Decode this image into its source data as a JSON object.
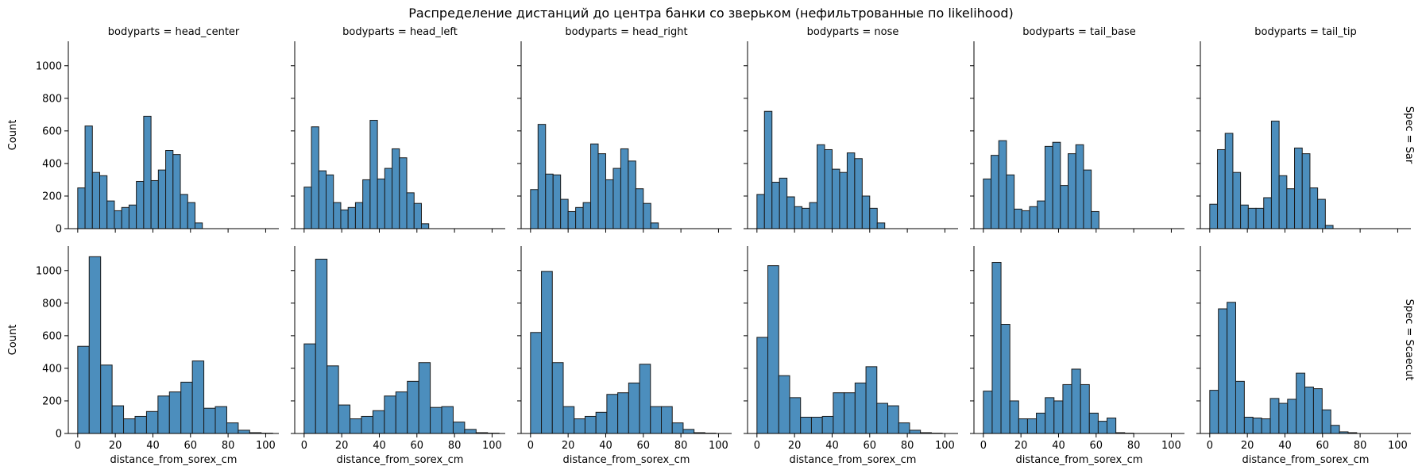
{
  "chart_data": {
    "type": "bar",
    "title": "Распределение дистанций до центра банки со зверьком (нефильтрованные по likelihood)",
    "col_var": "bodyparts",
    "row_var": "Spec",
    "columns": [
      "head_center",
      "head_left",
      "head_right",
      "nose",
      "tail_base",
      "tail_tip"
    ],
    "col_titles": [
      "bodyparts = head_center",
      "bodyparts = head_left",
      "bodyparts = head_right",
      "bodyparts = nose",
      "bodyparts = tail_base",
      "bodyparts = tail_tip"
    ],
    "row_titles": [
      "Spec = Sar",
      "Spec = Scaecut"
    ],
    "xlabel": "distance_from_sorex_cm",
    "ylabel": "Count",
    "xlim": [
      -5,
      107
    ],
    "ylim": [
      0,
      1150
    ],
    "x_ticks": [
      0,
      20,
      40,
      60,
      80,
      100
    ],
    "y_ticks": [
      0,
      200,
      400,
      600,
      800,
      1000
    ],
    "color": "#4c8ebd",
    "panels": [
      {
        "row": "Sar",
        "col": "head_center",
        "bin_start": 0,
        "bin_width": 3.9,
        "values": [
          250,
          630,
          345,
          325,
          170,
          110,
          130,
          145,
          290,
          690,
          295,
          360,
          480,
          455,
          210,
          160,
          35
        ]
      },
      {
        "row": "Sar",
        "col": "head_left",
        "bin_start": 0,
        "bin_width": 3.9,
        "values": [
          255,
          625,
          355,
          330,
          160,
          115,
          130,
          160,
          300,
          665,
          305,
          370,
          490,
          435,
          220,
          155,
          30
        ]
      },
      {
        "row": "Sar",
        "col": "head_right",
        "bin_start": 0,
        "bin_width": 4.0,
        "values": [
          240,
          640,
          335,
          330,
          180,
          105,
          130,
          160,
          520,
          460,
          300,
          370,
          490,
          415,
          245,
          155,
          35
        ]
      },
      {
        "row": "Sar",
        "col": "nose",
        "bin_start": 0,
        "bin_width": 4.0,
        "values": [
          210,
          720,
          285,
          310,
          195,
          135,
          125,
          160,
          515,
          485,
          365,
          345,
          465,
          430,
          200,
          125,
          35
        ]
      },
      {
        "row": "Sar",
        "col": "tail_base",
        "bin_start": 0,
        "bin_width": 4.1,
        "values": [
          305,
          450,
          540,
          330,
          120,
          110,
          135,
          170,
          505,
          530,
          265,
          460,
          515,
          360,
          105
        ]
      },
      {
        "row": "Sar",
        "col": "tail_tip",
        "bin_start": 0,
        "bin_width": 4.1,
        "values": [
          150,
          485,
          585,
          345,
          145,
          125,
          125,
          190,
          660,
          325,
          245,
          495,
          460,
          250,
          180,
          20
        ]
      },
      {
        "row": "Scaecut",
        "col": "head_center",
        "bin_start": 0,
        "bin_width": 6.1,
        "values": [
          535,
          1085,
          420,
          170,
          90,
          105,
          135,
          230,
          255,
          315,
          445,
          155,
          165,
          65,
          20,
          5,
          2
        ]
      },
      {
        "row": "Scaecut",
        "col": "head_left",
        "bin_start": 0,
        "bin_width": 6.1,
        "values": [
          550,
          1070,
          415,
          175,
          90,
          105,
          140,
          230,
          255,
          320,
          435,
          160,
          165,
          70,
          25,
          5,
          2
        ]
      },
      {
        "row": "Scaecut",
        "col": "head_right",
        "bin_start": 0,
        "bin_width": 5.8,
        "values": [
          620,
          995,
          435,
          165,
          90,
          105,
          130,
          240,
          250,
          310,
          425,
          165,
          165,
          65,
          25,
          5,
          2
        ]
      },
      {
        "row": "Scaecut",
        "col": "nose",
        "bin_start": 0,
        "bin_width": 5.8,
        "values": [
          590,
          1030,
          355,
          220,
          100,
          100,
          105,
          250,
          250,
          310,
          410,
          185,
          170,
          65,
          20,
          5,
          2
        ]
      },
      {
        "row": "Scaecut",
        "col": "tail_base",
        "bin_start": 0,
        "bin_width": 4.7,
        "values": [
          260,
          1050,
          670,
          200,
          90,
          90,
          125,
          220,
          200,
          300,
          395,
          300,
          125,
          75,
          95,
          5,
          2
        ]
      },
      {
        "row": "Scaecut",
        "col": "tail_tip",
        "bin_start": 0,
        "bin_width": 4.6,
        "values": [
          265,
          765,
          805,
          320,
          100,
          95,
          90,
          215,
          185,
          210,
          370,
          285,
          275,
          145,
          50,
          10,
          5
        ]
      }
    ]
  }
}
